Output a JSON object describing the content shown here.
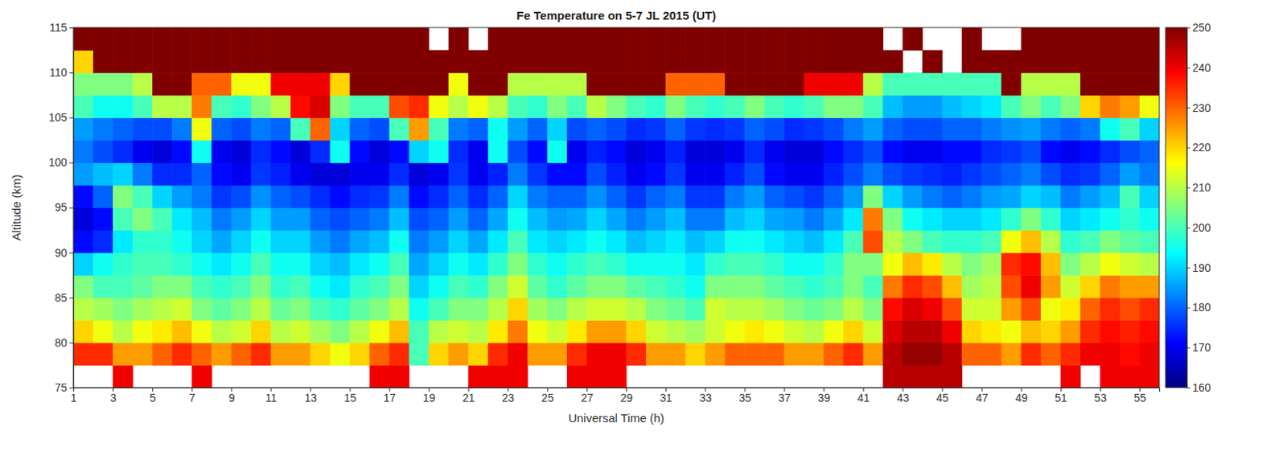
{
  "chart_data": {
    "type": "heatmap",
    "title": "Fe Temperature on 5-7 JL 2015 (UT)",
    "x_label": "Universal Time (h)",
    "y_label": "Altitude (km)",
    "color": "jet",
    "xlim": [
      1,
      56
    ],
    "ylim": [
      75,
      115
    ],
    "xticks": [
      1,
      3,
      5,
      7,
      9,
      11,
      13,
      15,
      17,
      19,
      21,
      23,
      25,
      27,
      29,
      31,
      33,
      35,
      37,
      39,
      41,
      43,
      45,
      47,
      49,
      51,
      53,
      55
    ],
    "yticks": [
      75,
      80,
      85,
      90,
      95,
      100,
      105,
      110,
      115
    ],
    "x_bins": [
      1,
      2,
      3,
      4,
      5,
      6,
      7,
      8,
      9,
      10,
      11,
      12,
      13,
      14,
      15,
      16,
      17,
      18,
      19,
      20,
      21,
      22,
      23,
      24,
      25,
      26,
      27,
      28,
      29,
      30,
      31,
      32,
      33,
      34,
      35,
      36,
      37,
      38,
      39,
      40,
      41,
      42,
      43,
      44,
      45,
      46,
      47,
      48,
      49,
      50,
      51,
      52,
      53,
      54,
      55,
      56
    ],
    "y_bins": [
      75,
      77.5,
      80,
      82.5,
      85,
      87.5,
      90,
      92.5,
      95,
      97.5,
      100,
      102.5,
      105,
      107.5,
      110,
      112.5,
      115
    ],
    "colorbar_lim": [
      160,
      250
    ],
    "colorbar_ticks": [
      160,
      170,
      180,
      190,
      200,
      210,
      220,
      230,
      240,
      250
    ],
    "values": [
      [
        null,
        null,
        240,
        null,
        null,
        null,
        240,
        null,
        null,
        null,
        null,
        null,
        null,
        null,
        null,
        240,
        240,
        null,
        null,
        null,
        240,
        240,
        240,
        null,
        null,
        240,
        240,
        240,
        null,
        null,
        null,
        null,
        null,
        null,
        null,
        null,
        null,
        null,
        null,
        null,
        null,
        245,
        245,
        245,
        245,
        null,
        null,
        null,
        null,
        null,
        240,
        null,
        240,
        240,
        240
      ],
      [
        235,
        235,
        225,
        225,
        230,
        235,
        230,
        225,
        230,
        235,
        225,
        225,
        220,
        215,
        220,
        230,
        235,
        200,
        220,
        225,
        220,
        235,
        240,
        225,
        225,
        235,
        240,
        240,
        235,
        225,
        225,
        220,
        225,
        230,
        230,
        230,
        225,
        225,
        230,
        235,
        225,
        245,
        248,
        248,
        245,
        230,
        230,
        225,
        235,
        230,
        235,
        240,
        240,
        238,
        240
      ],
      [
        220,
        215,
        210,
        215,
        218,
        222,
        215,
        210,
        212,
        220,
        210,
        212,
        208,
        205,
        210,
        215,
        222,
        200,
        210,
        212,
        210,
        218,
        228,
        215,
        212,
        218,
        225,
        225,
        220,
        212,
        210,
        208,
        212,
        215,
        218,
        215,
        212,
        210,
        215,
        220,
        212,
        242,
        245,
        245,
        240,
        220,
        218,
        215,
        222,
        220,
        225,
        235,
        238,
        236,
        238
      ],
      [
        210,
        208,
        205,
        208,
        210,
        212,
        205,
        202,
        205,
        210,
        203,
        205,
        200,
        198,
        202,
        205,
        210,
        195,
        200,
        205,
        205,
        210,
        220,
        208,
        205,
        210,
        212,
        212,
        210,
        205,
        203,
        200,
        212,
        210,
        210,
        208,
        205,
        203,
        205,
        210,
        205,
        238,
        242,
        240,
        232,
        212,
        212,
        225,
        232,
        215,
        218,
        230,
        235,
        232,
        235
      ],
      [
        205,
        200,
        200,
        202,
        205,
        205,
        200,
        198,
        200,
        205,
        198,
        200,
        195,
        192,
        198,
        200,
        205,
        190,
        195,
        200,
        198,
        205,
        212,
        202,
        198,
        202,
        205,
        205,
        202,
        200,
        198,
        195,
        205,
        205,
        205,
        202,
        200,
        198,
        200,
        205,
        200,
        228,
        235,
        232,
        222,
        208,
        210,
        232,
        240,
        225,
        212,
        220,
        228,
        225,
        225
      ],
      [
        190,
        195,
        198,
        200,
        200,
        198,
        195,
        192,
        195,
        200,
        195,
        195,
        190,
        188,
        192,
        195,
        200,
        186,
        190,
        195,
        192,
        198,
        205,
        198,
        195,
        198,
        200,
        198,
        195,
        195,
        195,
        192,
        198,
        200,
        200,
        198,
        195,
        195,
        198,
        205,
        205,
        215,
        222,
        218,
        210,
        205,
        208,
        235,
        238,
        222,
        205,
        210,
        215,
        212,
        210
      ],
      [
        172,
        175,
        192,
        198,
        198,
        195,
        190,
        186,
        190,
        195,
        190,
        190,
        185,
        182,
        186,
        188,
        195,
        182,
        185,
        190,
        186,
        192,
        200,
        192,
        190,
        192,
        195,
        192,
        188,
        190,
        192,
        188,
        190,
        195,
        195,
        192,
        190,
        188,
        192,
        200,
        232,
        210,
        205,
        200,
        198,
        198,
        200,
        215,
        222,
        210,
        198,
        200,
        205,
        202,
        200
      ],
      [
        168,
        172,
        200,
        205,
        200,
        192,
        188,
        182,
        185,
        190,
        185,
        185,
        180,
        178,
        180,
        182,
        188,
        178,
        180,
        185,
        180,
        186,
        195,
        188,
        185,
        186,
        190,
        186,
        182,
        185,
        188,
        182,
        182,
        188,
        190,
        186,
        185,
        182,
        186,
        192,
        228,
        205,
        195,
        192,
        190,
        190,
        192,
        198,
        205,
        198,
        190,
        192,
        195,
        198,
        195
      ],
      [
        172,
        180,
        205,
        200,
        190,
        185,
        182,
        176,
        178,
        184,
        180,
        178,
        175,
        172,
        175,
        176,
        182,
        172,
        175,
        180,
        175,
        180,
        190,
        182,
        180,
        180,
        184,
        180,
        176,
        180,
        182,
        176,
        176,
        182,
        185,
        180,
        178,
        176,
        180,
        185,
        205,
        190,
        185,
        182,
        180,
        182,
        185,
        186,
        190,
        188,
        182,
        185,
        188,
        200,
        190
      ],
      [
        185,
        188,
        190,
        182,
        175,
        175,
        180,
        172,
        170,
        176,
        174,
        170,
        168,
        168,
        170,
        170,
        175,
        168,
        170,
        176,
        170,
        174,
        182,
        176,
        172,
        172,
        178,
        174,
        170,
        172,
        176,
        170,
        170,
        174,
        178,
        172,
        170,
        170,
        174,
        178,
        182,
        178,
        176,
        175,
        174,
        176,
        178,
        180,
        182,
        178,
        175,
        176,
        180,
        185,
        182
      ],
      [
        182,
        178,
        175,
        170,
        168,
        172,
        195,
        170,
        168,
        175,
        172,
        168,
        175,
        195,
        172,
        168,
        172,
        190,
        195,
        175,
        170,
        195,
        178,
        172,
        195,
        170,
        174,
        172,
        168,
        170,
        174,
        168,
        168,
        170,
        175,
        170,
        168,
        168,
        172,
        175,
        178,
        172,
        170,
        170,
        172,
        172,
        175,
        176,
        178,
        172,
        170,
        172,
        175,
        178,
        180
      ],
      [
        185,
        182,
        180,
        178,
        178,
        182,
        215,
        180,
        178,
        182,
        180,
        200,
        230,
        190,
        180,
        178,
        200,
        225,
        200,
        182,
        180,
        195,
        185,
        180,
        190,
        178,
        180,
        178,
        175,
        176,
        180,
        176,
        175,
        176,
        180,
        178,
        175,
        176,
        178,
        182,
        185,
        180,
        178,
        178,
        180,
        180,
        182,
        184,
        185,
        182,
        180,
        182,
        195,
        200,
        190
      ],
      [
        200,
        195,
        195,
        200,
        210,
        210,
        228,
        200,
        198,
        205,
        210,
        238,
        242,
        205,
        200,
        200,
        232,
        235,
        215,
        210,
        215,
        210,
        200,
        198,
        205,
        200,
        210,
        205,
        200,
        198,
        205,
        200,
        198,
        200,
        205,
        200,
        198,
        200,
        205,
        205,
        200,
        188,
        185,
        185,
        188,
        190,
        192,
        200,
        205,
        200,
        205,
        220,
        228,
        225,
        215
      ],
      [
        205,
        205,
        205,
        210,
        250,
        250,
        230,
        230,
        215,
        215,
        240,
        240,
        240,
        220,
        250,
        250,
        250,
        250,
        250,
        215,
        250,
        250,
        210,
        210,
        210,
        210,
        250,
        250,
        250,
        250,
        230,
        230,
        230,
        250,
        250,
        250,
        250,
        240,
        240,
        240,
        210,
        200,
        200,
        200,
        200,
        200,
        200,
        250,
        210,
        210,
        210,
        250,
        250,
        250,
        250
      ],
      [
        220,
        250,
        250,
        250,
        250,
        250,
        250,
        250,
        250,
        250,
        250,
        250,
        250,
        250,
        250,
        250,
        250,
        250,
        250,
        250,
        250,
        250,
        250,
        250,
        250,
        250,
        250,
        250,
        250,
        250,
        250,
        250,
        250,
        250,
        250,
        250,
        250,
        250,
        250,
        250,
        250,
        250,
        null,
        250,
        null,
        250,
        250,
        250,
        250,
        250,
        250,
        250,
        250,
        250,
        250
      ],
      [
        250,
        250,
        250,
        250,
        250,
        250,
        250,
        250,
        250,
        250,
        250,
        250,
        250,
        250,
        250,
        250,
        250,
        250,
        null,
        250,
        null,
        250,
        250,
        250,
        250,
        250,
        250,
        250,
        250,
        250,
        250,
        250,
        250,
        250,
        250,
        250,
        250,
        250,
        250,
        250,
        250,
        null,
        250,
        null,
        null,
        250,
        null,
        null,
        250,
        250,
        250,
        250,
        250,
        250,
        250
      ]
    ]
  }
}
